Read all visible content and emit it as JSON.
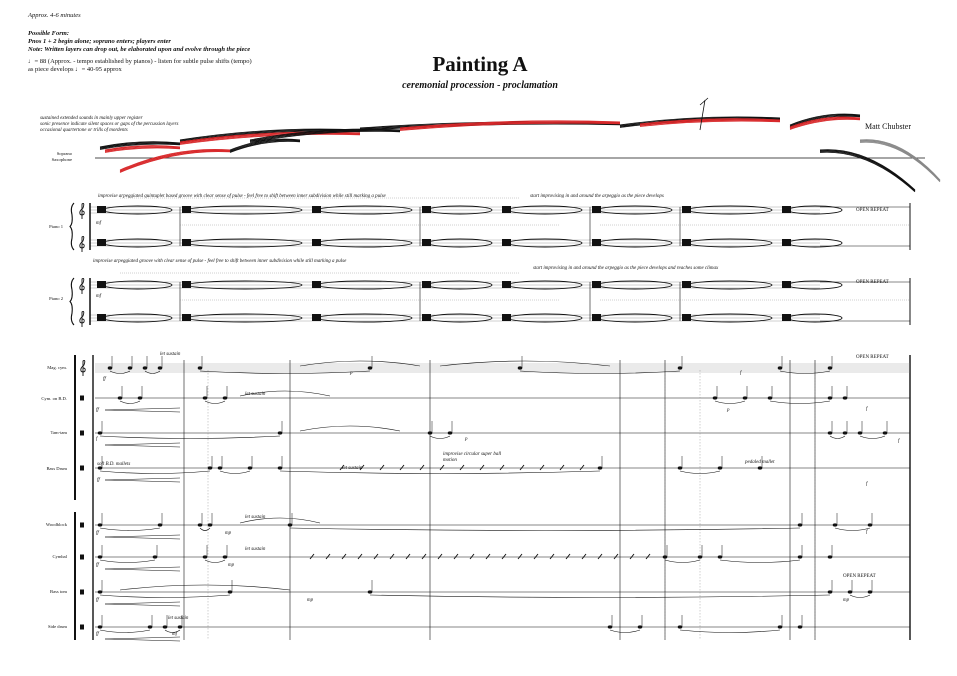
{
  "header": {
    "duration": "Approx. 4-6 minutes",
    "form_heading": "Possible Form:",
    "form_line1": "Pnos 1 + 2 begin alone; soprano enters; players enter",
    "form_line2": "Note: Written layers can drop out, be elaborated upon and evolve through the piece",
    "tempo_line1": "♩= 88 (Approx. - tempo established by pianos) - listen for subtle pulse shifts (tempo)",
    "tempo_line2": "as piece develops ♩= 40-95 approx"
  },
  "title": "Painting A",
  "subtitle": "ceremonial procession - proclamation",
  "composer": "Matt Chubster",
  "soprano": {
    "label": "Soprano Saxophone",
    "instructions": [
      "sustained extended sounds in mainly upper register",
      "sonic presence indicate silent spaces or gaps of the percussion layers",
      "occasional quartertone or trills of mordents"
    ]
  },
  "piano1": {
    "label": "Piano 1",
    "instruction_a": "improvise arpeggiated quintuplet based groove with clear sense of pulse - feel free to shift between inner subdivision while still marking a pulse",
    "instruction_b": "start improvising in and around the arpeggio as the piece develops",
    "dynamic": "mf",
    "repeat": "OPEN REPEAT"
  },
  "piano2": {
    "label": "Piano 2",
    "instruction_a": "improvise arpeggiated groove with clear sense of pulse - feel free to shift between inner subdivision while still marking a pulse",
    "instruction_b": "start improvising in and around the arpeggio as the piece develops and reaches some climax",
    "dynamic": "mf",
    "repeat": "OPEN REPEAT"
  },
  "percussion": {
    "repeat_top": "OPEN REPEAT",
    "repeat_bottom": "OPEN REPEAT",
    "instruments": [
      {
        "label": "Mag. cym.",
        "dynamic": "ff",
        "text": "let sustain",
        "dyn2": "p",
        "dyn3": "f"
      },
      {
        "label": "Cym. on B.D.",
        "dynamic": "ff",
        "text": "let sustain",
        "dyn2": "p",
        "dyn3": "f"
      },
      {
        "label": "Tam-tam",
        "dynamic": "f",
        "text": "",
        "dyn2": "p",
        "dyn3": "f"
      },
      {
        "label": "Bass Drum",
        "dynamic": "ff",
        "text": "soft B.D. mallets",
        "text2": "let sustain",
        "text3": "improvise circular super ball motion",
        "text4": "pedaled mallet",
        "dyn3": "f"
      },
      {
        "label": "Woodblock",
        "dynamic": "ff",
        "text": "let sustain",
        "dyn2": "mp",
        "dyn3": "f"
      },
      {
        "label": "Cymbal",
        "dynamic": "ff",
        "text": "let sustain",
        "dyn2": "mp"
      },
      {
        "label": "Bass tom",
        "dynamic": "ff",
        "dyn2": "mp",
        "dyn3": "mp"
      },
      {
        "label": "Side drum",
        "dynamic": "ff",
        "text": "let sustain",
        "dyn2": "mf"
      }
    ]
  },
  "colors": {
    "ink": "#111111",
    "red_ink": "#d8282a",
    "grey": "#888888"
  }
}
